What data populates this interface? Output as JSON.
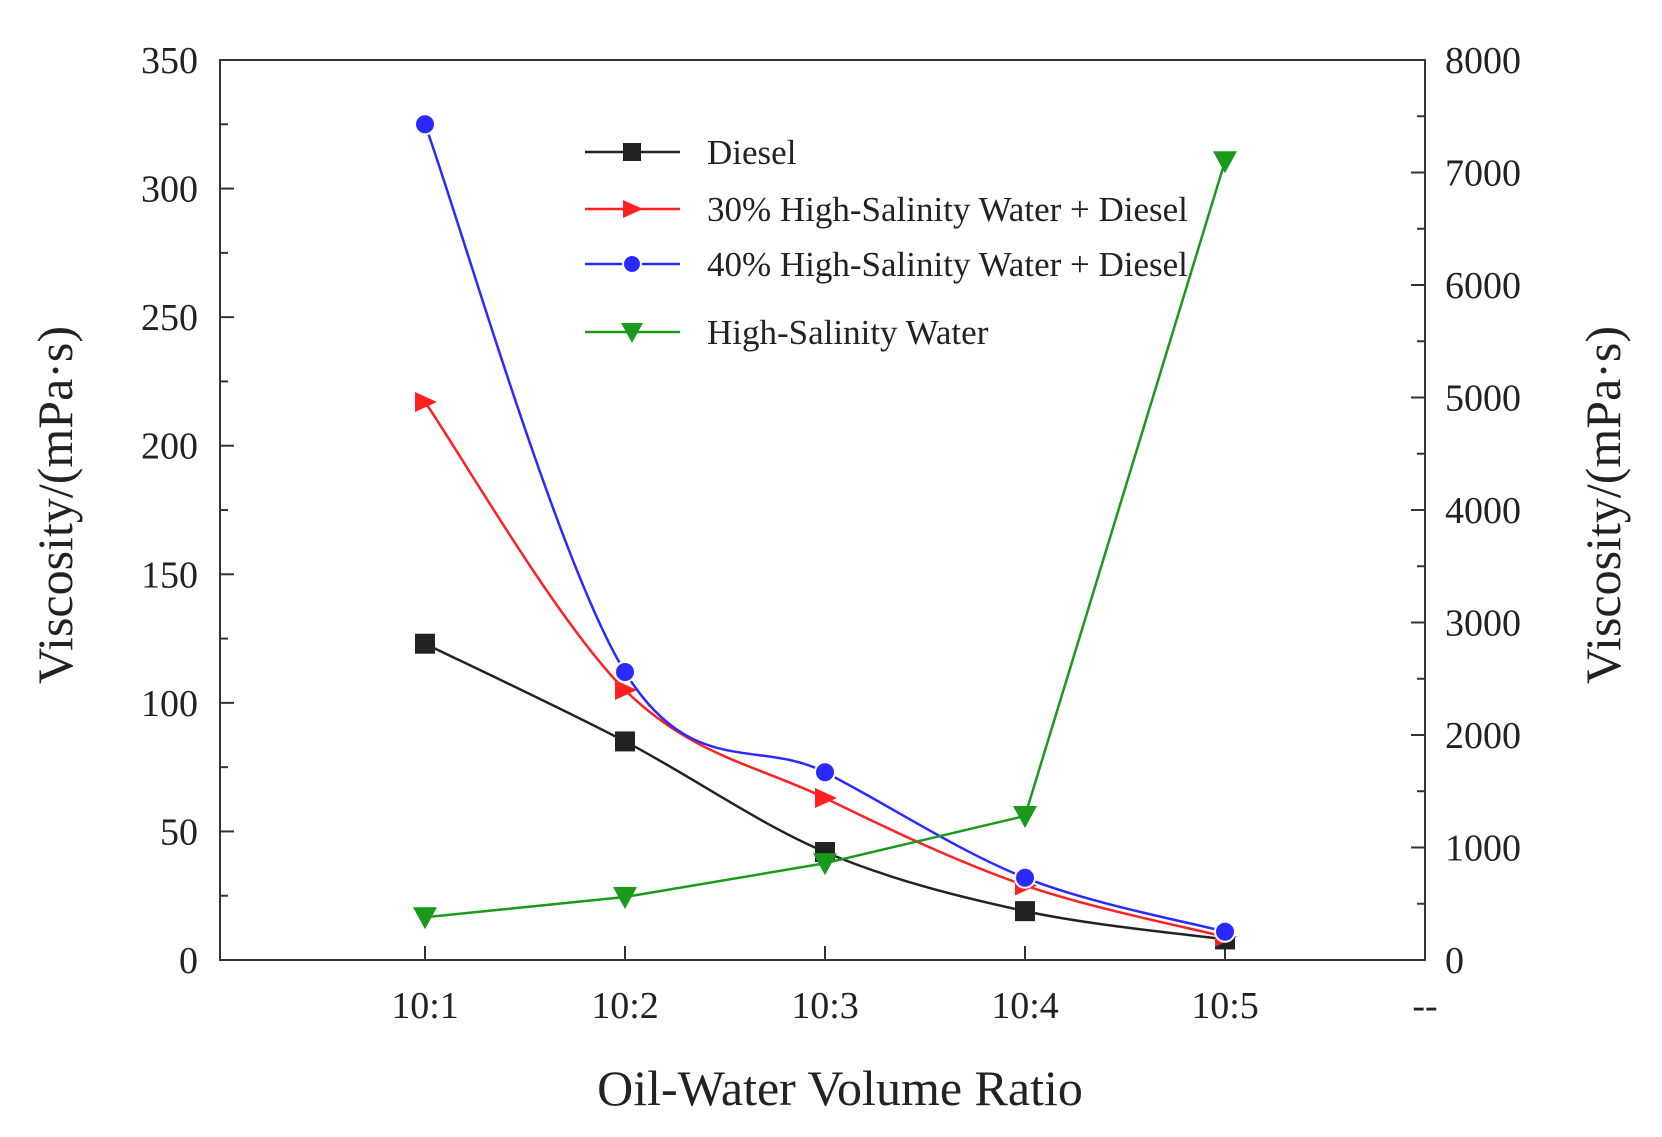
{
  "chart_data": {
    "type": "line",
    "title": "",
    "xlabel": "Oil-Water Volume Ratio",
    "ylabel_left": "Viscosity/(mPa·s)",
    "ylabel_right": "Viscosity/(mPa·s)",
    "categories": [
      "10:1",
      "10:2",
      "10:3",
      "10:4",
      "10:5"
    ],
    "extra_xtick_label": "--",
    "ylim_left": [
      0,
      350
    ],
    "yticks_left": [
      0,
      50,
      100,
      150,
      200,
      250,
      300,
      350
    ],
    "ylim_right": [
      0,
      8000
    ],
    "yticks_right": [
      0,
      1000,
      2000,
      3000,
      4000,
      5000,
      6000,
      7000,
      8000
    ],
    "grid": false,
    "legend_position": "top-center",
    "series": [
      {
        "name": "Diesel",
        "axis": "left",
        "marker": "square",
        "color": "#222222",
        "values": [
          123,
          85,
          42,
          19,
          8
        ]
      },
      {
        "name": "30% High-Salinity Water + Diesel",
        "axis": "left",
        "marker": "triangle-right",
        "color": "#ff2020",
        "values": [
          217,
          105,
          63,
          29,
          9
        ]
      },
      {
        "name": "40% High-Salinity Water + Diesel",
        "axis": "left",
        "marker": "circle",
        "color": "#2a2aff",
        "values": [
          325,
          112,
          73,
          32,
          11
        ]
      },
      {
        "name": "High-Salinity Water",
        "axis": "right",
        "marker": "triangle-down",
        "color": "#1a9a1a",
        "values": [
          380,
          560,
          860,
          1280,
          7100
        ]
      }
    ]
  }
}
